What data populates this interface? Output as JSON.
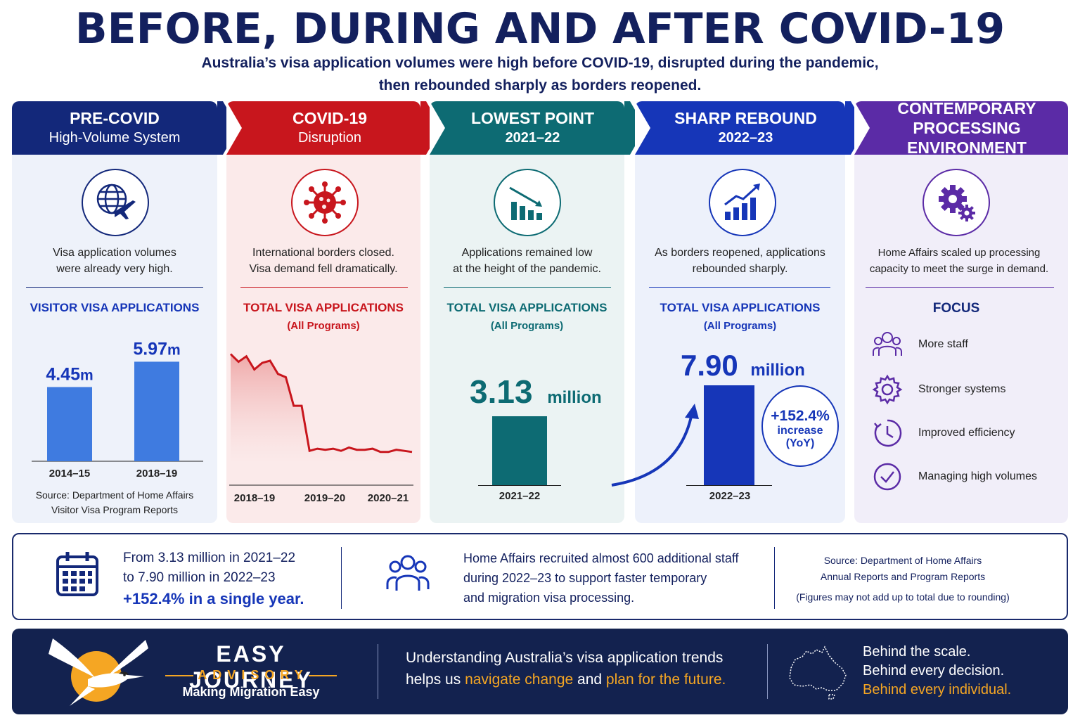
{
  "title": "BEFORE, DURING AND AFTER COVID-19",
  "subtitle_line1": "Australia’s visa application volumes were high before COVID-19, disrupted during the pandemic,",
  "subtitle_line2": "then rebounded sharply as borders reopened.",
  "columns": [
    {
      "header_l1": "PRE-COVID",
      "header_l2": "High-Volume System",
      "icon": "globe-plane-icon",
      "desc_l1": "Visa application volumes",
      "desc_l2": "were already very high.",
      "section": "VISITOR VISA APPLICATIONS",
      "source_l1": "Source: Department of Home Affairs",
      "source_l2": "Visitor Visa Program Reports",
      "color": "#13287a"
    },
    {
      "header_l1": "COVID-19",
      "header_l2": "Disruption",
      "icon": "virus-icon",
      "desc_l1": "International borders closed.",
      "desc_l2": "Visa demand fell dramatically.",
      "section": "TOTAL VISA APPLICATIONS",
      "section_sub": "(All Programs)",
      "color": "#c8161d"
    },
    {
      "header_l1": "LOWEST POINT",
      "header_l2": "2021–22",
      "icon": "declining-chart-icon",
      "desc_l1": "Applications remained low",
      "desc_l2": "at the height of the pandemic.",
      "section": "TOTAL VISA APPLICATIONS",
      "section_sub": "(All Programs)",
      "value": "3.13",
      "unit": "million",
      "year": "2021–22",
      "color": "#0d6b73"
    },
    {
      "header_l1": "SHARP REBOUND",
      "header_l2": "2022–23",
      "icon": "rising-chart-icon",
      "desc_l1": "As borders reopened, applications",
      "desc_l2": "rebounded sharply.",
      "section": "TOTAL VISA APPLICATIONS",
      "section_sub": "(All Programs)",
      "value": "7.90",
      "unit": "million",
      "year": "2022–23",
      "badge_l1": "+152.4%",
      "badge_l2": "increase",
      "badge_l3": "(YoY)",
      "color": "#1636b8"
    },
    {
      "header_l1": "CONTEMPORARY",
      "header_l2": "PROCESSING ENVIRONMENT",
      "icon": "gears-icon",
      "desc_l1": "Home Affairs scaled up processing",
      "desc_l2": "capacity to meet the surge in demand.",
      "section": "FOCUS",
      "focus": [
        "More staff",
        "Stronger systems",
        "Improved efficiency",
        "Managing high volumes"
      ],
      "color": "#5b2ba6"
    }
  ],
  "chart_data": [
    {
      "type": "bar",
      "categories": [
        "2014–15",
        "2018–19"
      ],
      "values": [
        4.45,
        5.97
      ],
      "value_labels": [
        "4.45",
        "5.97"
      ],
      "unit": "m",
      "ylim": [
        0,
        7
      ]
    },
    {
      "type": "area",
      "x_ticks": [
        "2018–19",
        "2019–20",
        "2020–21"
      ],
      "series": [
        {
          "values": [
            10,
            9.3,
            9.8,
            8.6,
            9.2,
            9.4,
            8.2,
            7.9,
            5.3,
            5.3,
            1.2,
            1.4,
            1.3,
            1.4,
            1.2,
            1.5,
            1.3,
            1.3,
            1.4,
            1.1,
            1.1,
            1.3,
            1.2,
            1.1
          ]
        }
      ],
      "ylim": [
        0,
        11
      ]
    }
  ],
  "bottom": {
    "left_l1": "From 3.13 million in 2021–22",
    "left_l2": "to 7.90 million in 2022–23",
    "left_l3": "+152.4% in a single year.",
    "mid_l1": "Home Affairs recruited almost 600 additional staff",
    "mid_l2": "during 2022–23 to support faster temporary",
    "mid_l3": "and migration visa processing.",
    "src_l1": "Source: Department of Home Affairs",
    "src_l2": "Annual Reports and Program Reports",
    "src_l3": "(Figures may not add up to total due to rounding)"
  },
  "footer": {
    "brand_l1": "EASY JOURNEY",
    "brand_l2": "ADVISORY",
    "tagline": "Making Migration Easy",
    "msg_l1": "Understanding Australia’s  visa application trends",
    "msg_l2a": "helps us ",
    "msg_l2b": "navigate change",
    "msg_l2c": " and ",
    "msg_l2d": "plan for the future.",
    "right_l1": "Behind the scale.",
    "right_l2": "Behind every decision.",
    "right_l3": "Behind every individual.",
    "accent": "#f5a623"
  }
}
